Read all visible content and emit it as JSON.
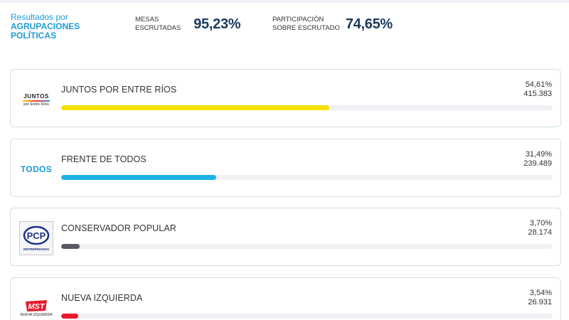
{
  "header": {
    "title_line1": "Resultados por",
    "title_line2": "AGRUPACIONES",
    "title_line3": "POLÍTICAS",
    "mesas": {
      "label_line1": "MESAS",
      "label_line2": "ESCRUTADAS",
      "value": "95,23%"
    },
    "participacion": {
      "label_line1": "PARTICIPACIÓN",
      "label_line2": "SOBRE ESCRUTADO",
      "value": "74,65%"
    }
  },
  "results": [
    {
      "name": "JUNTOS POR ENTRE RÍOS",
      "percent": "54,61%",
      "votes": "415.383",
      "fraction": 0.5461,
      "color": "#f5e000",
      "logo": {
        "icon": "juntos-logo-icon",
        "line1": "JUNTOS",
        "line2": "por Entre Ríos"
      }
    },
    {
      "name": "FRENTE DE TODOS",
      "percent": "31,49%",
      "votes": "239.489",
      "fraction": 0.3149,
      "color": "#1cb3e8",
      "logo": {
        "icon": "todos-logo-icon",
        "text": "TODOS"
      }
    },
    {
      "name": "CONSERVADOR POPULAR",
      "percent": "3,70%",
      "votes": "28.174",
      "fraction": 0.037,
      "color": "#5b5866",
      "logo": {
        "icon": "pcp-logo-icon",
        "line1": "PCP",
        "line2": "ENTRERRIANOS"
      }
    },
    {
      "name": "NUEVA IZQUIERDA",
      "percent": "3,54%",
      "votes": "26.931",
      "fraction": 0.0354,
      "color": "#e8192c",
      "logo": {
        "icon": "mst-logo-icon",
        "line1": "MST",
        "line2": "NUEVA IZQUIERDA"
      }
    }
  ]
}
